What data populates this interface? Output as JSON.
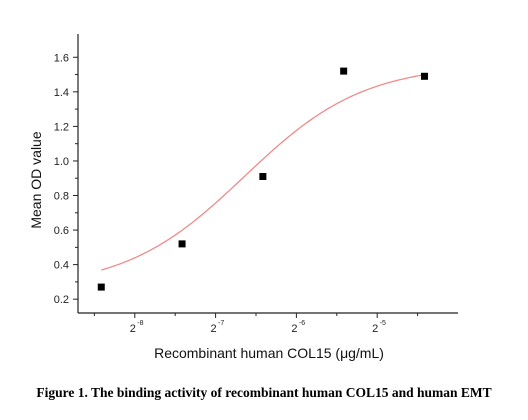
{
  "chart_data": {
    "type": "scatter",
    "xlabel": "Recombinant human COL15 (μg/mL)",
    "ylabel": "Mean OD value",
    "x_scale": "log2",
    "x_ticks": [
      {
        "base": "2",
        "exp": "-8",
        "value": 0.00390625
      },
      {
        "base": "2",
        "exp": "-7",
        "value": 0.0078125
      },
      {
        "base": "2",
        "exp": "-6",
        "value": 0.015625
      },
      {
        "base": "2",
        "exp": "-5",
        "value": 0.03125
      }
    ],
    "xlim": [
      0.0024,
      0.0625
    ],
    "ylim": [
      0.12,
      1.7
    ],
    "y_ticks": [
      "0.2",
      "0.4",
      "0.6",
      "0.8",
      "1.0",
      "1.2",
      "1.4",
      "1.6"
    ],
    "series": [
      {
        "marker": "square",
        "x": [
          0.00293,
          0.00586,
          0.01172,
          0.02344,
          0.04688
        ],
        "y": [
          0.27,
          0.52,
          0.91,
          1.52,
          1.49
        ]
      }
    ],
    "fit_curve": {
      "model": "sigmoid",
      "bottom": 0.26,
      "top": 1.56,
      "ec50": 0.01,
      "hill": 1.95
    },
    "grid": false,
    "colors": {
      "markers": "#000000",
      "curve": "#f08a8a",
      "axes": "#222222"
    }
  },
  "caption": "Figure 1. The binding activity of recombinant human COL15 and human EMT"
}
